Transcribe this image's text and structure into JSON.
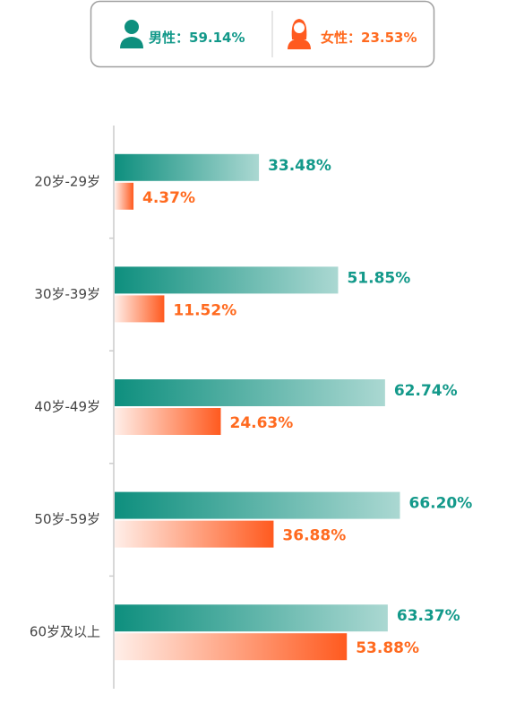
{
  "chart_data": {
    "type": "hbar",
    "legend_separator": "：",
    "categories": [
      "20岁-29岁",
      "30岁-39岁",
      "40岁-49岁",
      "50岁-59岁",
      "60岁及以上"
    ],
    "series": [
      {
        "name": "男性",
        "color": "#0e8f7e",
        "label_color": "#13998a",
        "total": 59.14,
        "total_label": "59.14%",
        "values": [
          33.48,
          51.85,
          62.74,
          66.2,
          63.37
        ],
        "value_labels": [
          "33.48%",
          "51.85%",
          "62.74%",
          "66.20%",
          "63.37%"
        ]
      },
      {
        "name": "女性",
        "color": "#ff5a1f",
        "label_color": "#ff6a1f",
        "total": 23.53,
        "total_label": "23.53%",
        "values": [
          4.37,
          11.52,
          24.63,
          36.88,
          53.88
        ],
        "value_labels": [
          "4.37%",
          "11.52%",
          "24.63%",
          "36.88%",
          "53.88%"
        ]
      }
    ],
    "xlim": [
      0,
      90
    ]
  }
}
